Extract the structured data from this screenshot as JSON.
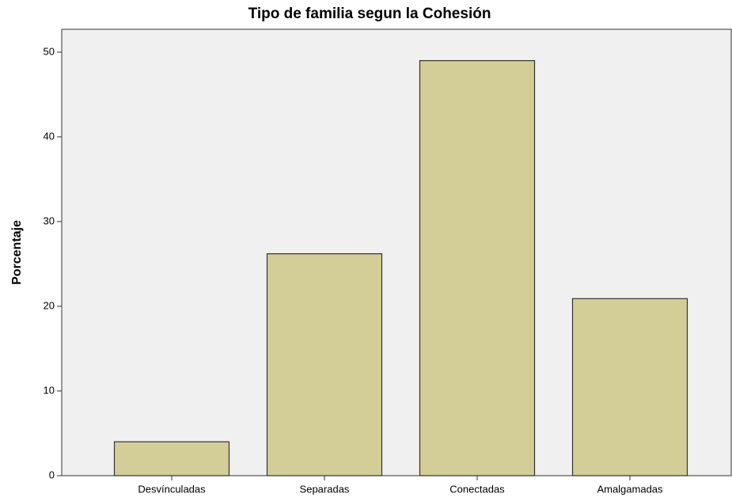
{
  "chart_data": {
    "type": "bar",
    "title": "Tipo de familia segun la Cohesión",
    "y_label": "Porcentaje",
    "categories": [
      "Desvínculadas",
      "Separadas",
      "Conectadas",
      "Amalgamadas"
    ],
    "values": [
      4.0,
      26.2,
      49.0,
      20.9
    ],
    "color": "#d3ce97",
    "ylim": [
      0,
      52.7
    ],
    "yticks": [
      0,
      10,
      20,
      30,
      40,
      50
    ],
    "grid": false
  }
}
